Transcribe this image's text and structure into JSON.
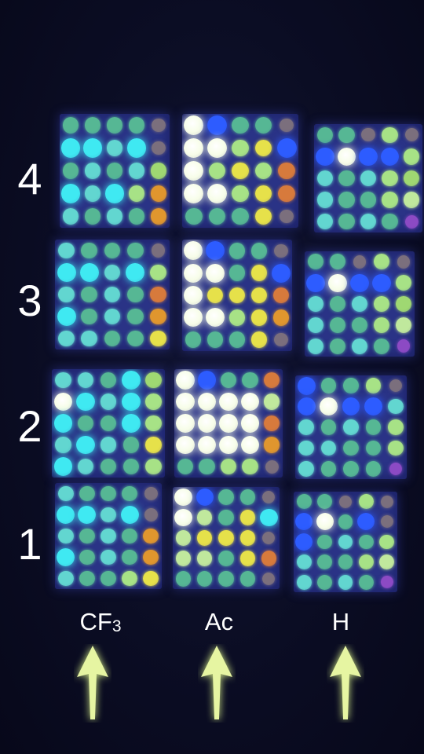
{
  "row_labels": [
    "4",
    "3",
    "2",
    "1"
  ],
  "column_labels": [
    {
      "main": "CF",
      "sub": "3"
    },
    {
      "main": "Ac",
      "sub": ""
    },
    {
      "main": "H",
      "sub": ""
    }
  ],
  "arrow_color": "#e6f5a2",
  "plate_color": "#2a3386",
  "palette": {
    "g": "#56b794",
    "t": "#62d6d0",
    "c": "#3fe9f2",
    "l": "#a7e286",
    "y": "#e6e14a",
    "o": "#e0962e",
    "w": "#f7fde8",
    "b": "#2d5cff",
    "d": "#7b6f7d",
    "p": "#8c4ac4",
    "k": "#c0e89d",
    "m": "#9fd872",
    "r": "#d77a3c"
  },
  "plates": {
    "CF3": {
      "4": [
        "ggggd",
        "cctcd",
        "gtgtm",
        "ctclo",
        "tgtgo"
      ],
      "3": [
        "tgggd",
        "cctcl",
        "tgtgr",
        "cgtgo",
        "ttggy"
      ],
      "2": [
        "ttgcm",
        "wctcl",
        "cggcl",
        "tctgy",
        "ctggl"
      ],
      "1": [
        "tgggd",
        "cctcd",
        "tgtgo",
        "cgtgo",
        "tggly"
      ]
    },
    "Ac": {
      "4": [
        "wbggd",
        "wwlyb",
        "wlylr",
        "wwlyr",
        "gggyd"
      ],
      "3": [
        "wbggd",
        "wwgyb",
        "wyyyr",
        "wwlyo",
        "gggyd"
      ],
      "2": [
        "wbggr",
        "wwwwk",
        "wwwwr",
        "wwwwo",
        "gglld"
      ],
      "1": [
        "wbggd",
        "wkgyc",
        "kyyyd",
        "kkgyr",
        "ggggd"
      ]
    },
    "H": {
      "4": [
        "ggdld",
        "bwbbl",
        "tgtlm",
        "tgglk",
        "tgtgp"
      ],
      "3": [
        "ggdld",
        "bwbbl",
        "tgtlm",
        "tgglk",
        "tgtgp"
      ],
      "2": [
        "bggld",
        "bwbbt",
        "tgtgl",
        "ttggl",
        "tgggp"
      ],
      "1": [
        "ggdld",
        "bwgbd",
        "bgtgl",
        "tgglk",
        "tgtgp"
      ]
    }
  }
}
